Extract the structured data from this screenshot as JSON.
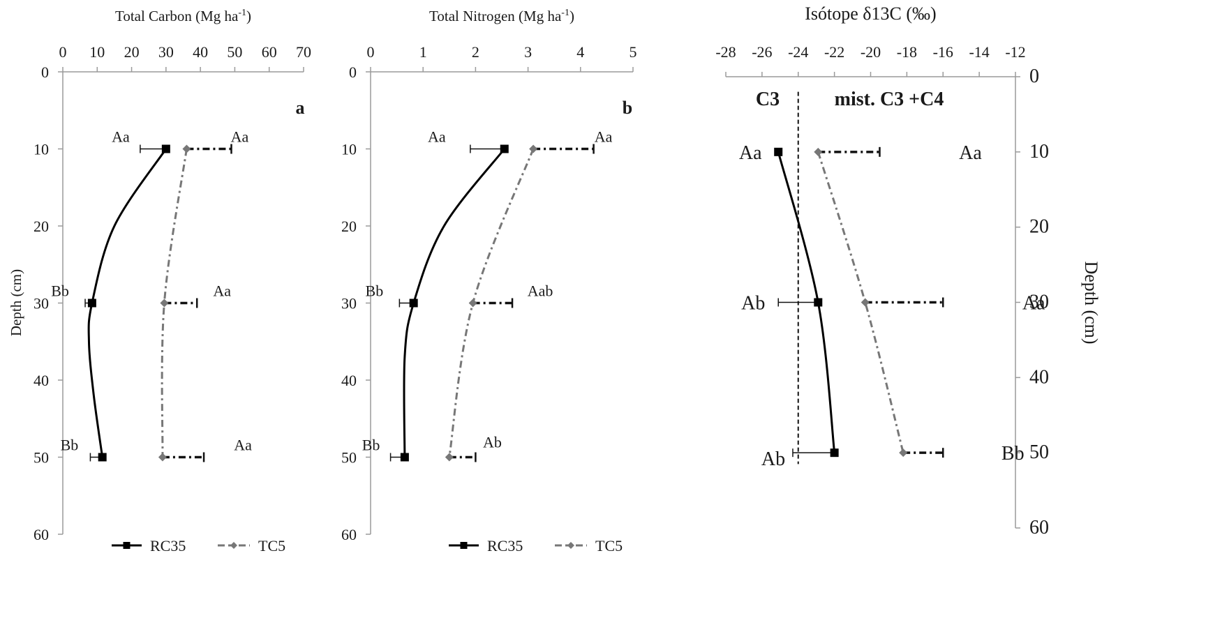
{
  "chart_data": [
    {
      "type": "line",
      "panel_letter": "a",
      "title": "",
      "xlabel": "Total Carbon (Mg ha",
      "xlabel_sup": "-1",
      "xlabel_suffix": ")",
      "ylabel": "Depth (cm)",
      "xlim": [
        0,
        70
      ],
      "ylim": [
        0,
        60
      ],
      "y_inverted": true,
      "x_axis_position": "top",
      "x_ticks": [
        0,
        10,
        20,
        30,
        40,
        50,
        60,
        70
      ],
      "y_ticks": [
        0,
        10,
        20,
        30,
        40,
        50,
        60
      ],
      "grid": false,
      "legend_position": "bottom",
      "series": [
        {
          "name": "RC35",
          "marker": "square",
          "line_style": "solid",
          "color": "#000000",
          "points": [
            {
              "depth": 10,
              "value": 30,
              "err_low": 22.5,
              "err_high": null,
              "label": "Aa"
            },
            {
              "depth": 30,
              "value": 8.5,
              "err_low": 6.5,
              "err_high": null,
              "label": "Bb"
            },
            {
              "depth": 50,
              "value": 11.5,
              "err_low": 8,
              "err_high": null,
              "label": "Bb"
            }
          ],
          "curve_via": [
            {
              "depth": 20,
              "value": 15
            },
            {
              "depth": 35,
              "value": 7.6
            },
            {
              "depth": 42,
              "value": 9
            }
          ]
        },
        {
          "name": "TC5",
          "marker": "diamond",
          "line_style": "dash-dot",
          "color": "#777777",
          "points": [
            {
              "depth": 10,
              "value": 36,
              "err_low": null,
              "err_high": 49,
              "label": "Aa"
            },
            {
              "depth": 30,
              "value": 29.5,
              "err_low": null,
              "err_high": 39,
              "label": "Aa"
            },
            {
              "depth": 50,
              "value": 29,
              "err_low": null,
              "err_high": 41,
              "label": "Aa"
            }
          ]
        }
      ]
    },
    {
      "type": "line",
      "panel_letter": "b",
      "title": "",
      "xlabel": "Total  Nitrogen (Mg ha",
      "xlabel_sup": "-1",
      "xlabel_suffix": ")",
      "ylabel": "",
      "xlim": [
        0,
        5
      ],
      "ylim": [
        0,
        60
      ],
      "y_inverted": true,
      "x_axis_position": "top",
      "x_ticks": [
        0,
        1,
        2,
        3,
        4,
        5
      ],
      "y_ticks": [
        0,
        10,
        20,
        30,
        40,
        50,
        60
      ],
      "grid": false,
      "legend_position": "bottom",
      "series": [
        {
          "name": "RC35",
          "marker": "square",
          "line_style": "solid",
          "color": "#000000",
          "points": [
            {
              "depth": 10,
              "value": 2.55,
              "err_low": 1.9,
              "err_high": null,
              "label": "Aa"
            },
            {
              "depth": 30,
              "value": 0.82,
              "err_low": 0.55,
              "err_high": null,
              "label": "Bb"
            },
            {
              "depth": 50,
              "value": 0.65,
              "err_low": 0.38,
              "err_high": null,
              "label": "Bb"
            }
          ],
          "curve_via": [
            {
              "depth": 20,
              "value": 1.4
            },
            {
              "depth": 37,
              "value": 0.65
            }
          ]
        },
        {
          "name": "TC5",
          "marker": "diamond",
          "line_style": "dash-dot",
          "color": "#777777",
          "points": [
            {
              "depth": 10,
              "value": 3.1,
              "err_low": null,
              "err_high": 4.25,
              "label": "Aa"
            },
            {
              "depth": 30,
              "value": 1.95,
              "err_low": null,
              "err_high": 2.7,
              "label": "Aab"
            },
            {
              "depth": 50,
              "value": 1.5,
              "err_low": null,
              "err_high": 2.0,
              "label": "Ab"
            }
          ]
        }
      ]
    },
    {
      "type": "line",
      "panel_letter": "",
      "title": "",
      "xlabel": "Isótope δ13C (‰)",
      "ylabel": "Depth (cm)",
      "xlim": [
        -28,
        -12
      ],
      "ylim": [
        0,
        60
      ],
      "y_inverted": true,
      "x_axis_position": "top",
      "y_axis_position": "right",
      "x_ticks": [
        -28,
        -26,
        -24,
        -22,
        -20,
        -18,
        -16,
        -14,
        -12
      ],
      "y_ticks": [
        0,
        10,
        20,
        30,
        40,
        50,
        60
      ],
      "grid": false,
      "reference_line": {
        "x": -24,
        "style": "dashed"
      },
      "region_labels": [
        "C3",
        "mist. C3 +C4"
      ],
      "series": [
        {
          "name": "RC35",
          "marker": "square",
          "line_style": "solid",
          "color": "#000000",
          "points": [
            {
              "depth": 10,
              "value": -25.1,
              "err_low": null,
              "err_high": null,
              "label": "Aa"
            },
            {
              "depth": 30,
              "value": -22.9,
              "err_low": -25.1,
              "err_high": null,
              "label": "Ab"
            },
            {
              "depth": 50,
              "value": -22.0,
              "err_low": -24.3,
              "err_high": null,
              "label": "Ab"
            }
          ]
        },
        {
          "name": "TC5",
          "marker": "diamond",
          "line_style": "dash-dot",
          "color": "#777777",
          "points": [
            {
              "depth": 10,
              "value": -22.9,
              "err_low": null,
              "err_high": -19.5,
              "label": "Aa"
            },
            {
              "depth": 30,
              "value": -20.3,
              "err_low": null,
              "err_high": -16.0,
              "label": "Aa"
            },
            {
              "depth": 50,
              "value": -18.2,
              "err_low": null,
              "err_high": -16.0,
              "label": "Bb"
            }
          ]
        }
      ]
    }
  ]
}
